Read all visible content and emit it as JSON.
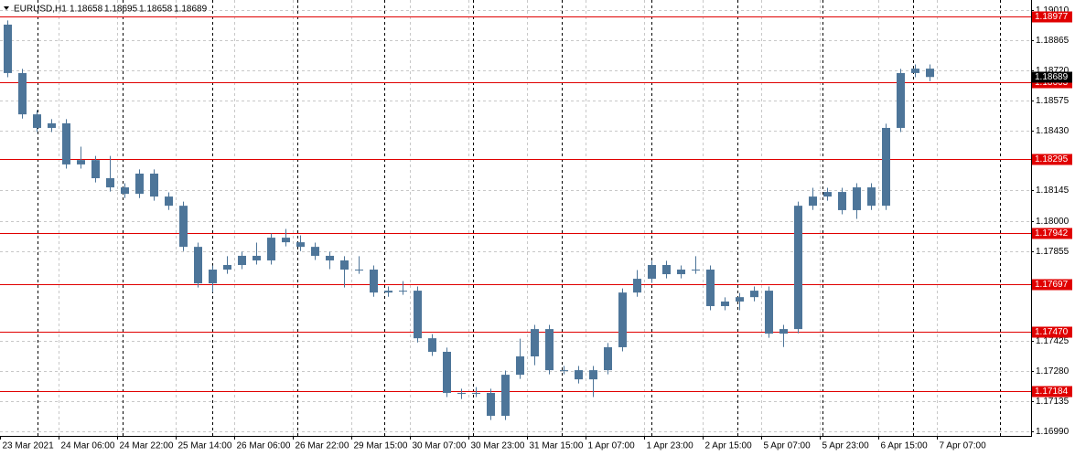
{
  "chart_data": {
    "type": "candlestick",
    "symbol": "EURUSD,H1",
    "header_ohlc": [
      1.18658,
      1.18695,
      1.18658,
      1.18689
    ],
    "color": "#4d7599",
    "level_color": "#e00000",
    "ylim": [
      1.16969,
      1.19058
    ],
    "yticks": [
      {
        "value": 1.1901,
        "label": "1.19010"
      },
      1.18865,
      {
        "value": 1.1872,
        "label": "1.18720"
      },
      1.18575,
      {
        "value": 1.1843,
        "label": "1.18430"
      },
      1.18145,
      {
        "value": 1.18,
        "label": "1.18000"
      },
      1.17855,
      1.17425,
      {
        "value": 1.1728,
        "label": "1.17280"
      },
      1.17135,
      {
        "value": 1.1699,
        "label": "1.16990"
      }
    ],
    "grid": true,
    "x_axis_labels": [
      "23 Mar 2021",
      "24 Mar 06:00",
      "24 Mar 22:00",
      "25 Mar 14:00",
      "26 Mar 06:00",
      "26 Mar 22:00",
      "29 Mar 15:00",
      "30 Mar 07:00",
      "30 Mar 23:00",
      "31 Mar 15:00",
      "1 Apr 07:00",
      "1 Apr 23:00",
      "2 Apr 15:00",
      "5 Apr 07:00",
      "5 Apr 23:00",
      "6 Apr 15:00",
      "7 Apr 07:00"
    ],
    "levels": [
      1.18977,
      1.18663,
      1.18295,
      1.17942,
      1.17697,
      {
        "value": 1.1747,
        "label": "1.17470"
      },
      1.17184
    ],
    "open": [
      1.1894,
      1.18708,
      1.1851,
      1.18445,
      1.18467,
      1.1827,
      1.18291,
      1.18204,
      1.1816,
      1.18129,
      1.18226,
      1.18116,
      1.18072,
      1.17875,
      1.177,
      1.17766,
      1.17788,
      1.17832,
      1.1781,
      1.17919,
      1.17897,
      1.17875,
      1.17832,
      1.1781,
      1.17766,
      1.17766,
      1.17656,
      1.17665,
      1.17665,
      1.17437,
      1.17372,
      1.17175,
      1.17175,
      1.17175,
      1.17065,
      1.17262,
      1.1735,
      1.17481,
      1.17284,
      1.17284,
      1.1724,
      1.17284,
      1.17394,
      1.17656,
      1.17722,
      1.17788,
      1.17744,
      1.17766,
      1.17766,
      1.17591,
      1.17613,
      1.17634,
      1.17665,
      1.17459,
      1.17481,
      1.18072,
      1.18116,
      1.18138,
      1.18051,
      1.1816,
      1.18072,
      1.18445,
      1.18708,
      1.18729
    ],
    "high": [
      1.1896,
      1.18728,
      1.1853,
      1.18487,
      1.18487,
      1.18355,
      1.18311,
      1.18311,
      1.1818,
      1.18246,
      1.18246,
      1.18136,
      1.18092,
      1.17895,
      1.17786,
      1.1783,
      1.17852,
      1.17895,
      1.17939,
      1.17961,
      1.1793,
      1.17895,
      1.17852,
      1.1783,
      1.1783,
      1.17786,
      1.17685,
      1.17711,
      1.17685,
      1.17457,
      1.17392,
      1.17195,
      1.17203,
      1.17195,
      1.17282,
      1.17435,
      1.17501,
      1.17501,
      1.17304,
      1.17304,
      1.17304,
      1.17414,
      1.17676,
      1.17764,
      1.17808,
      1.17808,
      1.17786,
      1.1783,
      1.17786,
      1.17633,
      1.17654,
      1.17685,
      1.17685,
      1.17501,
      1.18092,
      1.18158,
      1.18158,
      1.18158,
      1.1818,
      1.1818,
      1.18465,
      1.18728,
      1.18749,
      1.18749
    ],
    "low": [
      1.18688,
      1.1849,
      1.18425,
      1.18425,
      1.1825,
      1.1825,
      1.18184,
      1.1814,
      1.18109,
      1.18109,
      1.18096,
      1.18052,
      1.17855,
      1.1768,
      1.17658,
      1.17746,
      1.17768,
      1.1779,
      1.1779,
      1.17877,
      1.17855,
      1.17812,
      1.17768,
      1.1768,
      1.17746,
      1.17636,
      1.17636,
      1.17645,
      1.17417,
      1.17352,
      1.17155,
      1.17146,
      1.17155,
      1.17045,
      1.17045,
      1.17242,
      1.17308,
      1.17264,
      1.17264,
      1.1722,
      1.17155,
      1.17264,
      1.17374,
      1.17636,
      1.17702,
      1.17724,
      1.17724,
      1.17746,
      1.17571,
      1.17571,
      1.17571,
      1.17614,
      1.17439,
      1.17395,
      1.17461,
      1.18052,
      1.18096,
      1.18031,
      1.18009,
      1.18052,
      1.18052,
      1.18425,
      1.18688,
      1.18669
    ],
    "close": [
      1.18708,
      1.1851,
      1.18445,
      1.18467,
      1.1827,
      1.18291,
      1.18204,
      1.1816,
      1.18129,
      1.18226,
      1.18116,
      1.18072,
      1.17875,
      1.177,
      1.17766,
      1.17788,
      1.17832,
      1.1781,
      1.17919,
      1.17897,
      1.17875,
      1.17832,
      1.1781,
      1.17766,
      1.17766,
      1.17656,
      1.17665,
      1.17665,
      1.17437,
      1.17372,
      1.17175,
      1.17175,
      1.17175,
      1.17065,
      1.17262,
      1.1735,
      1.17481,
      1.17284,
      1.17284,
      1.1724,
      1.17284,
      1.17394,
      1.17656,
      1.17722,
      1.17788,
      1.17744,
      1.17766,
      1.17766,
      1.17591,
      1.17613,
      1.17634,
      1.17665,
      1.17459,
      1.17481,
      1.18072,
      1.18116,
      1.18138,
      1.18051,
      1.1816,
      1.18072,
      1.18445,
      1.18708,
      1.18729,
      1.18689
    ]
  }
}
